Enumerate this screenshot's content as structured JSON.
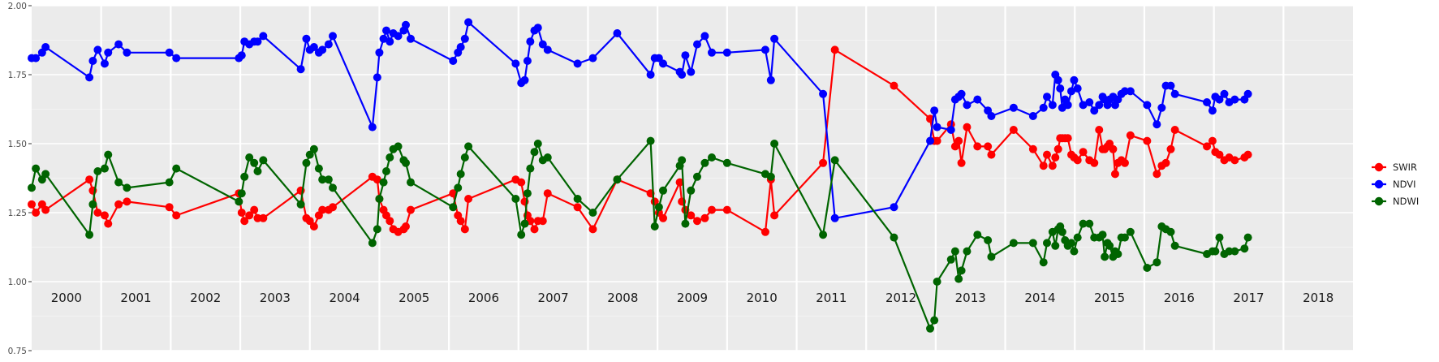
{
  "chart_data": {
    "type": "line",
    "title": "",
    "xlabel": "",
    "ylabel": "",
    "xlim": [
      2000.0,
      2019.0
    ],
    "ylim": [
      0.75,
      2.0
    ],
    "yticks": [
      0.75,
      1.0,
      1.25,
      1.5,
      1.75,
      2.0
    ],
    "ytick_labels": [
      "0.75",
      "1.00",
      "1.25",
      "1.50",
      "1.75",
      "2.00"
    ],
    "year_labels": [
      "2000",
      "2001",
      "2002",
      "2003",
      "2004",
      "2005",
      "2006",
      "2007",
      "2008",
      "2009",
      "2010",
      "2011",
      "2012",
      "2013",
      "2014",
      "2015",
      "2016",
      "2017",
      "2018"
    ],
    "grid": true,
    "legend_position": "right",
    "series": [
      {
        "name": "SWIR",
        "color": "#ff0000",
        "x": [
          2000.0,
          2000.06,
          2000.15,
          2000.2,
          2000.83,
          2000.88,
          2000.95,
          2001.05,
          2001.1,
          2001.25,
          2001.37,
          2001.98,
          2002.08,
          2002.98,
          2003.02,
          2003.06,
          2003.13,
          2003.2,
          2003.25,
          2003.33,
          2003.87,
          2003.95,
          2004.0,
          2004.06,
          2004.13,
          2004.18,
          2004.27,
          2004.33,
          2004.9,
          2004.97,
          2005.0,
          2005.06,
          2005.1,
          2005.15,
          2005.2,
          2005.27,
          2005.35,
          2005.38,
          2005.45,
          2006.06,
          2006.13,
          2006.17,
          2006.23,
          2006.28,
          2006.96,
          2007.04,
          2007.09,
          2007.13,
          2007.17,
          2007.23,
          2007.28,
          2007.35,
          2007.42,
          2007.85,
          2008.07,
          2008.42,
          2008.9,
          2008.96,
          2009.02,
          2009.08,
          2009.32,
          2009.35,
          2009.4,
          2009.48,
          2009.57,
          2009.68,
          2009.78,
          2010.0,
          2010.55,
          2010.63,
          2010.68,
          2011.38,
          2011.55,
          2012.4,
          2012.92,
          2012.98,
          2013.02,
          2013.22,
          2013.28,
          2013.33,
          2013.37,
          2013.45,
          2013.6,
          2013.75,
          2013.8,
          2014.12,
          2014.4,
          2014.55,
          2014.6,
          2014.68,
          2014.72,
          2014.76,
          2014.79,
          2014.82,
          2014.86,
          2014.9,
          2014.95,
          2014.99,
          2015.04,
          2015.12,
          2015.21,
          2015.28,
          2015.35,
          2015.4,
          2015.43,
          2015.47,
          2015.5,
          2015.55,
          2015.58,
          2015.62,
          2015.67,
          2015.72,
          2015.8,
          2016.04,
          2016.18,
          2016.25,
          2016.31,
          2016.38,
          2016.44,
          2016.9,
          2016.98,
          2017.02,
          2017.08,
          2017.15,
          2017.22,
          2017.3,
          2017.44,
          2017.49
        ],
        "values": [
          1.28,
          1.25,
          1.28,
          1.26,
          1.37,
          1.33,
          1.25,
          1.24,
          1.21,
          1.28,
          1.29,
          1.27,
          1.24,
          1.32,
          1.25,
          1.22,
          1.24,
          1.26,
          1.23,
          1.23,
          1.33,
          1.23,
          1.22,
          1.2,
          1.24,
          1.26,
          1.26,
          1.27,
          1.38,
          1.37,
          1.3,
          1.26,
          1.24,
          1.22,
          1.19,
          1.18,
          1.19,
          1.2,
          1.26,
          1.32,
          1.24,
          1.22,
          1.19,
          1.3,
          1.37,
          1.36,
          1.29,
          1.24,
          1.22,
          1.19,
          1.22,
          1.22,
          1.32,
          1.27,
          1.19,
          1.37,
          1.32,
          1.29,
          1.25,
          1.23,
          1.36,
          1.29,
          1.26,
          1.24,
          1.22,
          1.23,
          1.26,
          1.26,
          1.18,
          1.37,
          1.24,
          1.43,
          1.84,
          1.71,
          1.59,
          1.51,
          1.51,
          1.57,
          1.49,
          1.51,
          1.43,
          1.56,
          1.49,
          1.49,
          1.46,
          1.55,
          1.48,
          1.42,
          1.46,
          1.42,
          1.45,
          1.48,
          1.52,
          1.52,
          1.52,
          1.52,
          1.46,
          1.45,
          1.44,
          1.47,
          1.44,
          1.43,
          1.55,
          1.48,
          1.48,
          1.49,
          1.5,
          1.48,
          1.39,
          1.43,
          1.44,
          1.43,
          1.53,
          1.51,
          1.39,
          1.42,
          1.43,
          1.48,
          1.55,
          1.49,
          1.51,
          1.47,
          1.46,
          1.44,
          1.45,
          1.44,
          1.45,
          1.46
        ],
        "values_note": ""
      },
      {
        "name": "NDVI",
        "color": "#0000ff",
        "x": [
          2000.0,
          2000.06,
          2000.15,
          2000.2,
          2000.83,
          2000.88,
          2000.95,
          2001.05,
          2001.1,
          2001.25,
          2001.37,
          2001.98,
          2002.08,
          2002.98,
          2003.02,
          2003.06,
          2003.13,
          2003.2,
          2003.25,
          2003.33,
          2003.87,
          2003.95,
          2004.0,
          2004.06,
          2004.13,
          2004.18,
          2004.27,
          2004.33,
          2004.9,
          2004.97,
          2005.0,
          2005.06,
          2005.1,
          2005.15,
          2005.2,
          2005.27,
          2005.35,
          2005.38,
          2005.45,
          2006.06,
          2006.13,
          2006.17,
          2006.23,
          2006.28,
          2006.96,
          2007.04,
          2007.09,
          2007.13,
          2007.17,
          2007.23,
          2007.28,
          2007.35,
          2007.42,
          2007.85,
          2008.07,
          2008.42,
          2008.9,
          2008.96,
          2009.02,
          2009.08,
          2009.32,
          2009.35,
          2009.4,
          2009.48,
          2009.57,
          2009.68,
          2009.78,
          2010.0,
          2010.55,
          2010.63,
          2010.68,
          2011.38,
          2011.55,
          2012.4,
          2012.92,
          2012.98,
          2013.02,
          2013.22,
          2013.28,
          2013.33,
          2013.37,
          2013.45,
          2013.6,
          2013.75,
          2013.8,
          2014.12,
          2014.4,
          2014.55,
          2014.6,
          2014.68,
          2014.72,
          2014.76,
          2014.79,
          2014.82,
          2014.86,
          2014.9,
          2014.95,
          2014.99,
          2015.04,
          2015.12,
          2015.21,
          2015.28,
          2015.35,
          2015.4,
          2015.43,
          2015.47,
          2015.5,
          2015.55,
          2015.58,
          2015.62,
          2015.67,
          2015.72,
          2015.8,
          2016.04,
          2016.18,
          2016.25,
          2016.31,
          2016.38,
          2016.44,
          2016.9,
          2016.98,
          2017.02,
          2017.08,
          2017.15,
          2017.22,
          2017.3,
          2017.44,
          2017.49
        ],
        "values": [
          1.81,
          1.81,
          1.83,
          1.85,
          1.74,
          1.8,
          1.84,
          1.79,
          1.83,
          1.86,
          1.83,
          1.83,
          1.81,
          1.81,
          1.82,
          1.87,
          1.86,
          1.87,
          1.87,
          1.89,
          1.77,
          1.88,
          1.84,
          1.85,
          1.83,
          1.84,
          1.86,
          1.89,
          1.56,
          1.74,
          1.83,
          1.88,
          1.91,
          1.87,
          1.9,
          1.89,
          1.91,
          1.93,
          1.88,
          1.8,
          1.83,
          1.85,
          1.88,
          1.94,
          1.79,
          1.72,
          1.73,
          1.8,
          1.87,
          1.91,
          1.92,
          1.86,
          1.84,
          1.79,
          1.81,
          1.9,
          1.75,
          1.81,
          1.81,
          1.79,
          1.76,
          1.75,
          1.82,
          1.76,
          1.86,
          1.89,
          1.83,
          1.83,
          1.84,
          1.73,
          1.88,
          1.68,
          1.23,
          1.27,
          1.51,
          1.62,
          1.56,
          1.55,
          1.66,
          1.67,
          1.68,
          1.64,
          1.66,
          1.62,
          1.6,
          1.63,
          1.6,
          1.63,
          1.67,
          1.64,
          1.75,
          1.73,
          1.7,
          1.63,
          1.66,
          1.64,
          1.69,
          1.73,
          1.7,
          1.64,
          1.65,
          1.62,
          1.64,
          1.67,
          1.66,
          1.64,
          1.66,
          1.67,
          1.64,
          1.66,
          1.68,
          1.69,
          1.69,
          1.64,
          1.57,
          1.63,
          1.71,
          1.71,
          1.68,
          1.65,
          1.62,
          1.67,
          1.66,
          1.68,
          1.65,
          1.66,
          1.66,
          1.68
        ],
        "values_note": ""
      },
      {
        "name": "NDWI",
        "color": "#006400",
        "x": [
          2000.0,
          2000.06,
          2000.15,
          2000.2,
          2000.83,
          2000.88,
          2000.95,
          2001.05,
          2001.1,
          2001.25,
          2001.37,
          2001.98,
          2002.08,
          2002.98,
          2003.02,
          2003.06,
          2003.13,
          2003.2,
          2003.25,
          2003.33,
          2003.87,
          2003.95,
          2004.0,
          2004.06,
          2004.13,
          2004.18,
          2004.27,
          2004.33,
          2004.9,
          2004.97,
          2005.0,
          2005.06,
          2005.1,
          2005.15,
          2005.2,
          2005.27,
          2005.35,
          2005.38,
          2005.45,
          2006.06,
          2006.13,
          2006.17,
          2006.23,
          2006.28,
          2006.96,
          2007.04,
          2007.09,
          2007.13,
          2007.17,
          2007.23,
          2007.28,
          2007.35,
          2007.42,
          2007.85,
          2008.07,
          2008.42,
          2008.9,
          2008.96,
          2009.02,
          2009.08,
          2009.32,
          2009.35,
          2009.4,
          2009.48,
          2009.57,
          2009.68,
          2009.78,
          2010.0,
          2010.55,
          2010.63,
          2010.68,
          2011.38,
          2011.55,
          2012.4,
          2012.92,
          2012.98,
          2013.02,
          2013.22,
          2013.28,
          2013.33,
          2013.37,
          2013.45,
          2013.6,
          2013.75,
          2013.8,
          2014.12,
          2014.4,
          2014.55,
          2014.6,
          2014.68,
          2014.72,
          2014.76,
          2014.79,
          2014.82,
          2014.86,
          2014.9,
          2014.95,
          2014.99,
          2015.04,
          2015.12,
          2015.21,
          2015.28,
          2015.35,
          2015.4,
          2015.43,
          2015.47,
          2015.5,
          2015.55,
          2015.58,
          2015.62,
          2015.67,
          2015.72,
          2015.8,
          2016.04,
          2016.18,
          2016.25,
          2016.31,
          2016.38,
          2016.44,
          2016.9,
          2016.98,
          2017.02,
          2017.08,
          2017.15,
          2017.22,
          2017.3,
          2017.44,
          2017.49
        ],
        "values": [
          1.34,
          1.41,
          1.37,
          1.39,
          1.17,
          1.28,
          1.4,
          1.41,
          1.46,
          1.36,
          1.34,
          1.36,
          1.41,
          1.29,
          1.32,
          1.38,
          1.45,
          1.43,
          1.4,
          1.44,
          1.28,
          1.43,
          1.46,
          1.48,
          1.41,
          1.37,
          1.37,
          1.34,
          1.14,
          1.19,
          1.3,
          1.36,
          1.4,
          1.45,
          1.48,
          1.49,
          1.44,
          1.43,
          1.36,
          1.27,
          1.34,
          1.39,
          1.45,
          1.49,
          1.3,
          1.17,
          1.21,
          1.32,
          1.41,
          1.47,
          1.5,
          1.44,
          1.45,
          1.3,
          1.25,
          1.37,
          1.51,
          1.2,
          1.27,
          1.33,
          1.42,
          1.44,
          1.21,
          1.33,
          1.38,
          1.43,
          1.45,
          1.43,
          1.39,
          1.38,
          1.5,
          1.17,
          1.44,
          1.16,
          0.83,
          0.86,
          1.0,
          1.08,
          1.11,
          1.01,
          1.04,
          1.11,
          1.17,
          1.15,
          1.09,
          1.14,
          1.14,
          1.07,
          1.14,
          1.18,
          1.13,
          1.19,
          1.2,
          1.18,
          1.15,
          1.13,
          1.14,
          1.11,
          1.16,
          1.21,
          1.21,
          1.16,
          1.16,
          1.17,
          1.09,
          1.14,
          1.13,
          1.09,
          1.11,
          1.1,
          1.16,
          1.16,
          1.18,
          1.05,
          1.07,
          1.2,
          1.19,
          1.18,
          1.13,
          1.1,
          1.11,
          1.11,
          1.16,
          1.1,
          1.11,
          1.11,
          1.12,
          1.16
        ],
        "values_note": ""
      }
    ]
  }
}
